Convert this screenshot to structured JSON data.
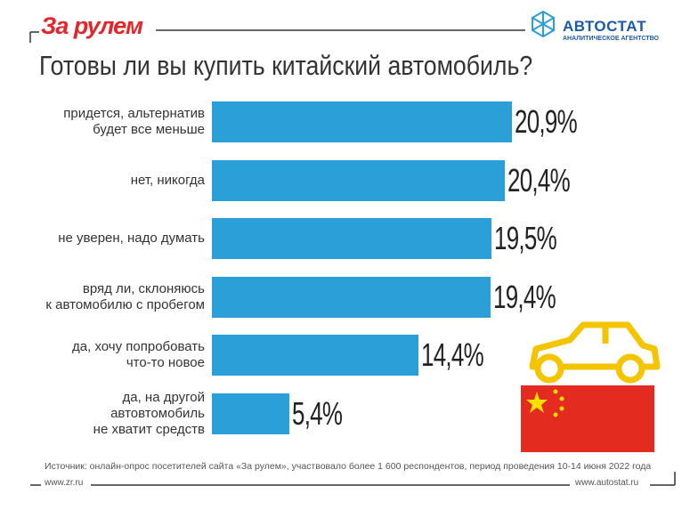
{
  "header": {
    "brand": "За рулем",
    "agency": "АВТОСТАТ",
    "agency_subtitle": "АНАЛИТИЧЕСКОЕ АГЕНТСТВО"
  },
  "chart_data": {
    "type": "bar",
    "orientation": "horizontal",
    "title": "Готовы ли вы купить китайский автомобиль?",
    "categories": [
      "придется, альтернатив\nбудет все меньше",
      "нет, никогда",
      "не уверен, надо думать",
      "вряд ли, склоняюсь\nк автомобилю с пробегом",
      "да, хочу попробовать\nчто-то новое",
      "да, на другой\nавтовтомобиль\nне хватит средств"
    ],
    "values": [
      20.9,
      20.4,
      19.5,
      19.4,
      14.4,
      5.4
    ],
    "value_labels": [
      "20,9%",
      "20,4%",
      "19,5%",
      "19,4%",
      "14,4%",
      "5,4%"
    ],
    "color": "#2a9fd8"
  },
  "footer": {
    "source": "Источник: онлайн-опрос посетителей сайта «За рулем», участвовало более 1 600 респондентов, период проведения 10-14 июня 2022 года",
    "left_url": "www.zr.ru",
    "right_url": "www.autostat.ru"
  }
}
